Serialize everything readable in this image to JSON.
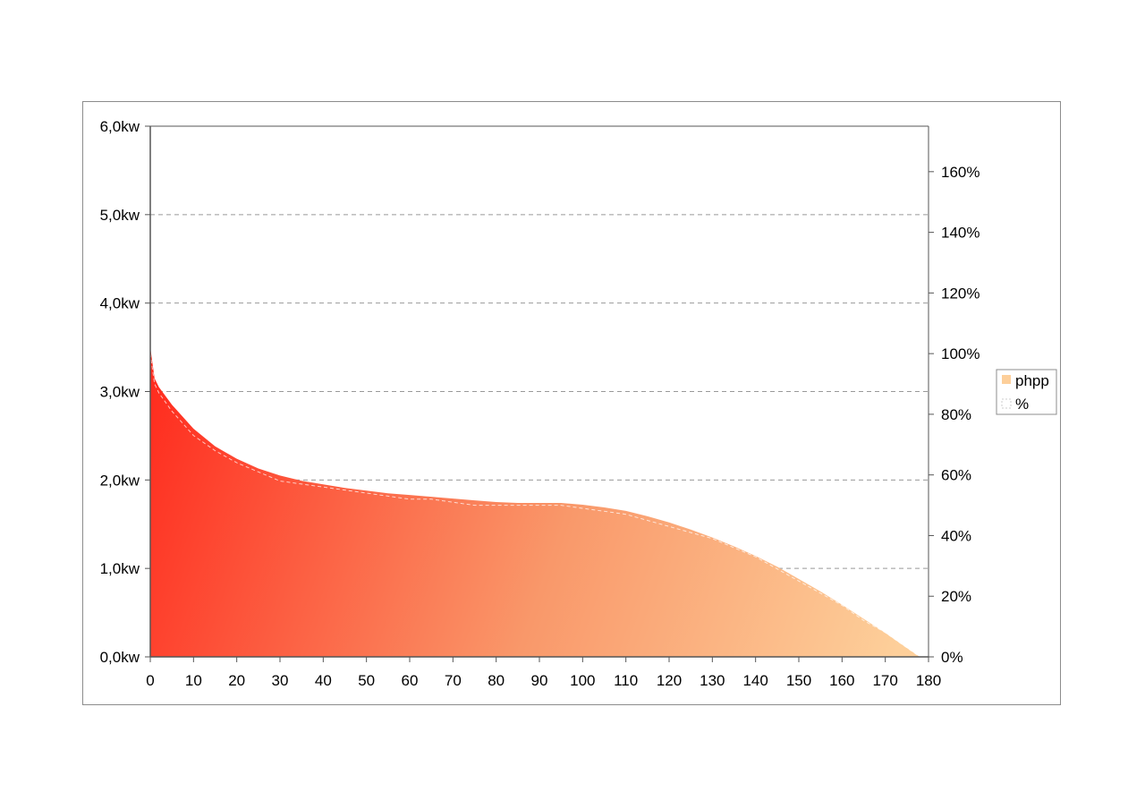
{
  "chart_data": {
    "type": "area",
    "x_ticks": [
      0,
      10,
      20,
      30,
      40,
      50,
      60,
      70,
      80,
      90,
      100,
      110,
      120,
      130,
      140,
      150,
      160,
      170,
      180
    ],
    "y_ticks": [
      "0,0kw",
      "1,0kw",
      "2,0kw",
      "3,0kw",
      "4,0kw",
      "5,0kw",
      "6,0kw"
    ],
    "y2_ticks": [
      "0%",
      "20%",
      "40%",
      "60%",
      "80%",
      "100%",
      "120%",
      "140%",
      "160%"
    ],
    "xlim": [
      0,
      180
    ],
    "ylim": [
      0,
      6
    ],
    "y2lim": [
      0,
      175
    ],
    "grid": "horizontal-dashed",
    "legend_position": "right",
    "series": [
      {
        "name": "phpp",
        "axis": "left",
        "unit": "kw",
        "x": [
          0,
          1,
          2,
          5,
          10,
          15,
          20,
          25,
          30,
          35,
          40,
          45,
          50,
          55,
          60,
          65,
          70,
          75,
          80,
          85,
          90,
          95,
          100,
          105,
          110,
          115,
          120,
          125,
          130,
          135,
          140,
          145,
          150,
          155,
          160,
          165,
          170,
          175,
          178
        ],
        "values": [
          3.5,
          3.15,
          3.05,
          2.85,
          2.58,
          2.38,
          2.24,
          2.13,
          2.05,
          1.99,
          1.95,
          1.91,
          1.88,
          1.85,
          1.83,
          1.81,
          1.79,
          1.77,
          1.75,
          1.74,
          1.74,
          1.74,
          1.72,
          1.69,
          1.65,
          1.59,
          1.52,
          1.44,
          1.35,
          1.25,
          1.14,
          1.02,
          0.88,
          0.74,
          0.59,
          0.43,
          0.27,
          0.1,
          0.0
        ]
      },
      {
        "name": "%",
        "axis": "right",
        "unit": "%",
        "x": [
          0,
          1,
          2,
          5,
          10,
          15,
          20,
          25,
          30,
          35,
          40,
          45,
          50,
          55,
          60,
          65,
          70,
          75,
          80,
          85,
          90,
          95,
          100,
          105,
          110,
          115,
          120,
          125,
          130,
          135,
          140,
          145,
          150,
          155,
          160,
          165,
          170,
          175,
          178
        ],
        "values": [
          100,
          90,
          87,
          81,
          73,
          68,
          64,
          61,
          58,
          57,
          56,
          55,
          54,
          53,
          52,
          52,
          51,
          50,
          50,
          50,
          50,
          50,
          49,
          48,
          47,
          45,
          43,
          41,
          39,
          36,
          33,
          29,
          25,
          21,
          17,
          12,
          8,
          3,
          0
        ]
      }
    ],
    "colors": {
      "area_dark": "#ff2d1f",
      "area_light": "#fdcf9a",
      "grid": "#999999",
      "axis": "#555555",
      "frame": "#8c8c8c"
    }
  }
}
